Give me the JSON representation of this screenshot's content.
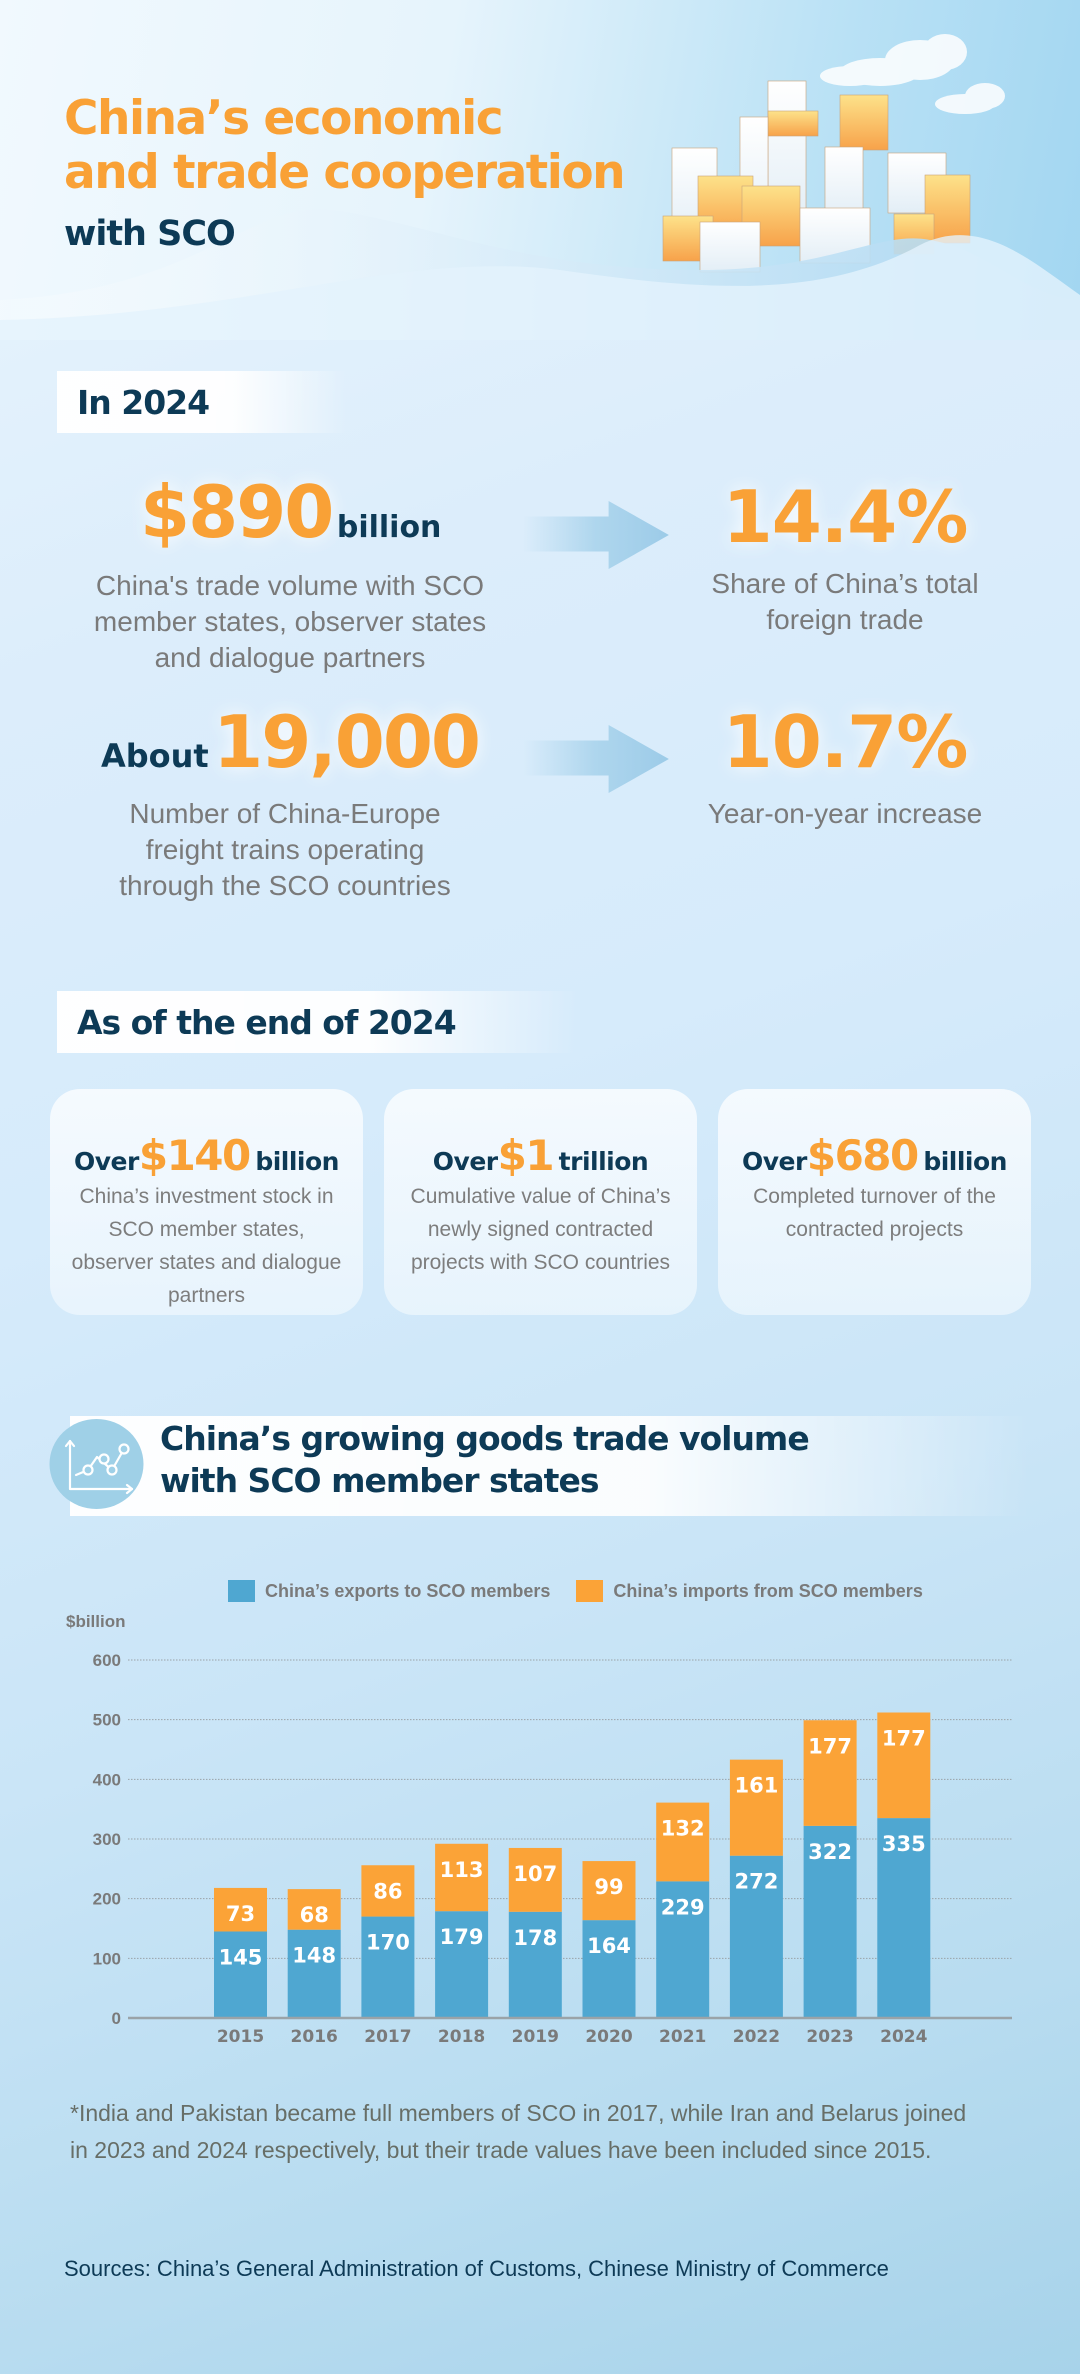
{
  "hero": {
    "title_line1": "China’s economic",
    "title_line2": "and trade cooperation",
    "subtitle": "with SCO"
  },
  "section_2024": {
    "tag": "In 2024",
    "stat1": {
      "value": "$890",
      "unit": "billion",
      "desc_lines": [
        "China's trade volume with SCO",
        "member states, observer states",
        "and dialogue partners"
      ]
    },
    "stat1_share": {
      "value": "14.4%",
      "desc_lines": [
        "Share of China’s total",
        "foreign trade"
      ]
    },
    "stat2": {
      "prefix": "About",
      "value": "19,000",
      "desc_lines": [
        "Number of China-Europe",
        "freight trains operating",
        "through the SCO countries"
      ]
    },
    "stat2_growth": {
      "value": "10.7%",
      "desc_lines": [
        "Year-on-year increase"
      ]
    }
  },
  "section_end2024": {
    "tag": "As of the end of 2024",
    "cards": [
      {
        "prefix": "Over",
        "value": "$140",
        "unit": "billion",
        "desc_lines": [
          "China’s investment stock in",
          "SCO member states,",
          "observer states and dialogue",
          "partners"
        ]
      },
      {
        "prefix": "Over",
        "value": "$1",
        "unit": "trillion",
        "desc_lines": [
          "Cumulative value of China’s",
          "newly signed contracted",
          "projects with SCO countries"
        ]
      },
      {
        "prefix": "Over",
        "value": "$680",
        "unit": "billion",
        "desc_lines": [
          "Completed turnover of the",
          "contracted projects"
        ]
      }
    ]
  },
  "chart_section": {
    "title_line1": "China’s growing goods trade volume",
    "title_line2": "with SCO member states",
    "icon": "line-chart-icon"
  },
  "colors": {
    "exports": "#4fa7d1",
    "imports": "#fba337",
    "accent_orange": "#f9a136",
    "navy": "#0d3a56"
  },
  "chart_data": {
    "type": "bar",
    "stacked": true,
    "title": "China’s growing goods trade volume with SCO member states",
    "xlabel": "",
    "ylabel": "$billion",
    "ylim": [
      0,
      600
    ],
    "yticks": [
      0,
      100,
      200,
      300,
      400,
      500,
      600
    ],
    "grid": true,
    "legend_position": "top",
    "categories": [
      "2015",
      "2016",
      "2017",
      "2018",
      "2019",
      "2020",
      "2021",
      "2022",
      "2023",
      "2024"
    ],
    "series": [
      {
        "name": "China’s exports to SCO members",
        "color": "#4fa7d1",
        "values": [
          145,
          148,
          170,
          179,
          178,
          164,
          229,
          272,
          322,
          335
        ]
      },
      {
        "name": "China’s imports from SCO members",
        "color": "#fba337",
        "values": [
          73,
          68,
          86,
          113,
          107,
          99,
          132,
          161,
          177,
          177
        ]
      }
    ]
  },
  "footnote": {
    "line1": "*India and Pakistan became full members of SCO in 2017, while Iran and Belarus joined",
    "line2": "in 2023 and 2024 respectively, but their trade values have been included since 2015."
  },
  "sources": "Sources: China’s General Administration of Customs, Chinese Ministry of Commerce"
}
